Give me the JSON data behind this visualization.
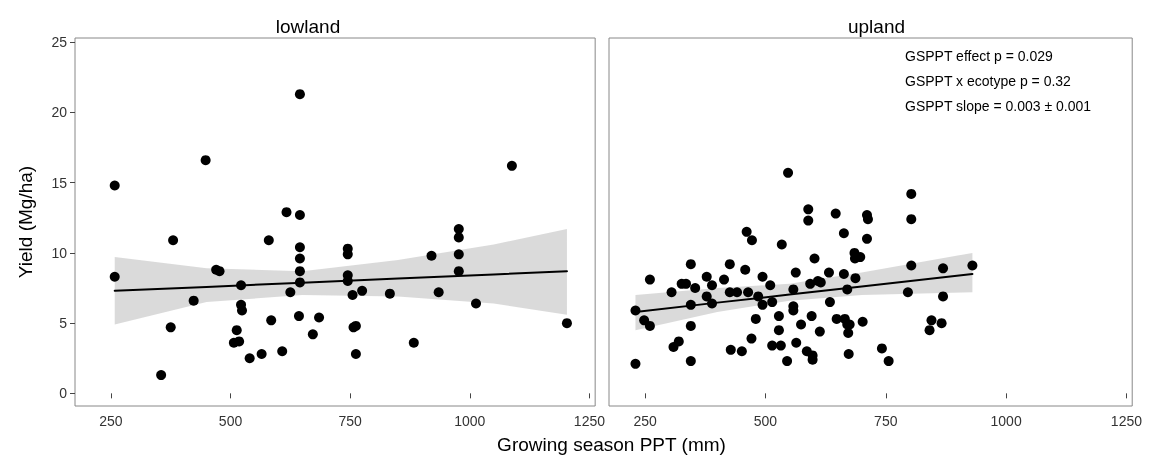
{
  "chart_data": [
    {
      "type": "scatter",
      "title": "lowland",
      "xlabel": "Growing season PPT (mm)",
      "ylabel": "Yield (Mg/ha)",
      "xlim": [
        175,
        1262
      ],
      "ylim": [
        -0.9,
        25.3
      ],
      "xticks": [
        250,
        500,
        750,
        1000,
        1250
      ],
      "yticks": [
        0,
        5,
        10,
        15,
        20,
        25
      ],
      "grid": false,
      "series": [
        {
          "color": "#000000",
          "marker": "circle",
          "x": [
            258,
            258,
            355,
            375,
            380,
            423,
            448,
            470,
            477,
            507,
            513,
            518,
            522,
            522,
            524,
            540,
            565,
            580,
            585,
            608,
            617,
            625,
            645,
            645,
            645,
            645,
            645,
            645,
            643,
            672,
            685,
            745,
            745,
            745,
            745,
            755,
            757,
            762,
            762,
            775,
            833,
            883,
            920,
            935,
            977,
            977,
            977,
            977,
            1013,
            1088,
            1203
          ],
          "values": [
            14.8,
            8.3,
            1.3,
            4.7,
            10.9,
            6.6,
            16.6,
            8.8,
            8.7,
            3.6,
            4.5,
            3.7,
            7.7,
            6.3,
            5.9,
            2.5,
            2.8,
            10.9,
            5.2,
            3.0,
            12.9,
            7.2,
            21.3,
            12.7,
            10.4,
            9.6,
            8.7,
            7.9,
            5.5,
            4.2,
            5.4,
            10.3,
            9.9,
            8.4,
            8.0,
            7.0,
            4.7,
            4.8,
            2.8,
            7.3,
            7.1,
            3.6,
            9.8,
            7.2,
            11.7,
            11.1,
            9.9,
            8.7,
            6.4,
            16.2,
            5.0
          ]
        },
        {
          "type": "line",
          "color": "#000000",
          "line_style": "solid",
          "x": [
            258,
            450,
            650,
            850,
            1050,
            1203
          ],
          "values": [
            7.3,
            7.58,
            7.88,
            8.18,
            8.47,
            8.7
          ],
          "lower": [
            4.9,
            6.5,
            7.0,
            6.9,
            6.4,
            5.6
          ],
          "upper": [
            9.7,
            8.9,
            8.7,
            9.5,
            10.6,
            11.7
          ]
        }
      ]
    },
    {
      "type": "scatter",
      "title": "upland",
      "xlim": [
        175,
        1262
      ],
      "ylim": [
        -0.9,
        25.3
      ],
      "xticks": [
        250,
        500,
        750,
        1000,
        1250
      ],
      "yticks": [
        0,
        5,
        10,
        15,
        20,
        25
      ],
      "tick_labels": "x",
      "grid": false,
      "annotations": [
        "GSPPT effect p = 0.029",
        "GSPPT x ecotype p = 0.32",
        "GSPPT slope = 0.003 ± 0.001"
      ],
      "series": [
        {
          "color": "#000000",
          "marker": "circle",
          "x": [
            230,
            230,
            248,
            260,
            260,
            305,
            309,
            320,
            326,
            335,
            345,
            345,
            345,
            345,
            354,
            378,
            378,
            389,
            389,
            414,
            426,
            426,
            428,
            441,
            451,
            458,
            461,
            464,
            472,
            471,
            480,
            485,
            494,
            494,
            510,
            514,
            514,
            528,
            528,
            532,
            534,
            545,
            547,
            558,
            558,
            558,
            563,
            564,
            574,
            586,
            589,
            589,
            593,
            596,
            598,
            598,
            602,
            609,
            613,
            615,
            632,
            634,
            646,
            648,
            663,
            663,
            665,
            670,
            670,
            672,
            673,
            675,
            685,
            686,
            687,
            697,
            702,
            711,
            713,
            711,
            742,
            756,
            796,
            803,
            803,
            803,
            841,
            845,
            866,
            869,
            869,
            930
          ],
          "values": [
            5.9,
            2.1,
            5.2,
            4.8,
            8.1,
            7.2,
            3.3,
            3.7,
            7.8,
            7.8,
            9.2,
            6.3,
            4.8,
            2.3,
            7.5,
            8.3,
            6.9,
            7.7,
            6.4,
            8.1,
            9.2,
            7.2,
            3.1,
            7.2,
            3.0,
            8.8,
            11.5,
            7.2,
            10.9,
            3.9,
            5.3,
            6.9,
            8.3,
            6.3,
            7.7,
            6.5,
            3.4,
            5.5,
            4.5,
            3.4,
            10.6,
            2.3,
            15.7,
            7.4,
            6.2,
            5.9,
            8.6,
            3.6,
            4.9,
            3.0,
            13.1,
            12.3,
            7.8,
            5.5,
            2.4,
            2.7,
            9.6,
            8.0,
            4.4,
            7.9,
            8.6,
            6.5,
            12.8,
            5.3,
            11.4,
            8.5,
            5.3,
            7.4,
            4.9,
            4.3,
            2.8,
            4.9,
            10.0,
            9.6,
            8.2,
            9.7,
            5.1,
            12.7,
            12.4,
            11.0,
            3.2,
            2.3,
            7.2,
            14.2,
            12.4,
            9.1,
            4.5,
            5.2,
            5.0,
            8.9,
            6.9,
            9.1
          ]
        },
        {
          "type": "line",
          "color": "#000000",
          "line_style": "solid",
          "x": [
            230,
            400,
            550,
            700,
            930
          ],
          "values": [
            5.8,
            6.46,
            7.03,
            7.61,
            8.5
          ],
          "lower": [
            4.5,
            5.8,
            6.6,
            7.0,
            7.2
          ],
          "upper": [
            7.0,
            7.5,
            7.8,
            8.6,
            10.0
          ]
        }
      ]
    }
  ]
}
